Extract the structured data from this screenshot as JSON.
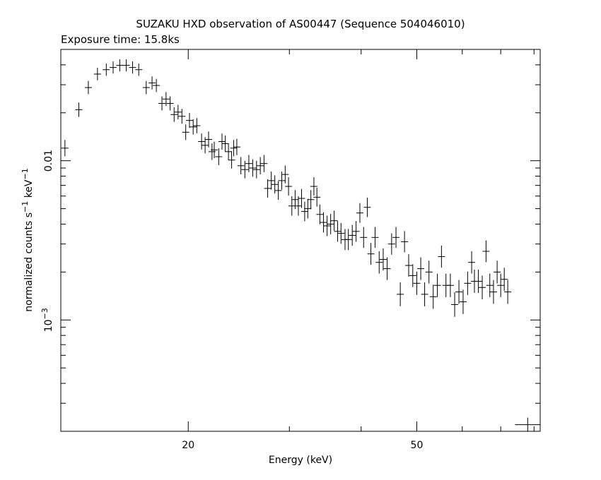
{
  "chart_data": {
    "type": "scatter",
    "title": "SUZAKU HXD observation of AS00447 (Sequence 504046010)",
    "subtitle": "Exposure time: 15.8ks",
    "xlabel": "Energy (keV)",
    "ylabel_parts": {
      "pre": "normalized counts s",
      "sup1": "−1",
      "mid": " keV",
      "sup2": "−1"
    },
    "x_scale": "log",
    "y_scale": "log",
    "xlim": [
      12.0,
      82.0
    ],
    "ylim": [
      0.0002,
      0.05
    ],
    "x_major_ticks": [
      20,
      50
    ],
    "x_tick_labels": [
      "20",
      "50"
    ],
    "y_major_ticks": [
      0.001,
      0.01
    ],
    "y_tick_labels": [
      {
        "base": "10",
        "sup": "−3"
      },
      {
        "base": "0.01",
        "sup": ""
      }
    ],
    "grid": false,
    "legend": "none",
    "colors": {
      "axes": "#000000",
      "points": "#000000",
      "background": "#ffffff"
    },
    "series": [
      {
        "points": [
          [
            12.2,
            0.012
          ],
          [
            12.9,
            0.0209
          ],
          [
            13.4,
            0.0288
          ],
          [
            13.9,
            0.035
          ],
          [
            14.4,
            0.0373
          ],
          [
            14.8,
            0.0385
          ],
          [
            15.2,
            0.0397
          ],
          [
            15.6,
            0.0397
          ],
          [
            16.0,
            0.0385
          ],
          [
            16.4,
            0.0373
          ],
          [
            16.9,
            0.0288
          ],
          [
            17.3,
            0.0308
          ],
          [
            17.6,
            0.0297
          ],
          [
            18.0,
            0.0229
          ],
          [
            18.3,
            0.0244
          ],
          [
            18.6,
            0.0229
          ],
          [
            18.9,
            0.0195
          ],
          [
            19.2,
            0.0202
          ],
          [
            19.5,
            0.019
          ],
          [
            19.8,
            0.0151
          ],
          [
            20.1,
            0.0179
          ],
          [
            20.4,
            0.0163
          ],
          [
            20.7,
            0.0166
          ],
          [
            21.1,
            0.0132
          ],
          [
            21.4,
            0.0125
          ],
          [
            21.7,
            0.0136
          ],
          [
            22.0,
            0.0114
          ],
          [
            22.2,
            0.0117
          ],
          [
            22.6,
            0.0106
          ],
          [
            22.9,
            0.0132
          ],
          [
            23.2,
            0.0128
          ],
          [
            23.5,
            0.0114
          ],
          [
            23.8,
            0.0101
          ],
          [
            24.0,
            0.012
          ],
          [
            24.3,
            0.0122
          ],
          [
            24.7,
            0.0093
          ],
          [
            25.1,
            0.0088
          ],
          [
            25.5,
            0.0096
          ],
          [
            25.9,
            0.009
          ],
          [
            26.3,
            0.0088
          ],
          [
            26.7,
            0.0093
          ],
          [
            27.1,
            0.0096
          ],
          [
            27.5,
            0.0067
          ],
          [
            27.9,
            0.0075
          ],
          [
            28.3,
            0.0071
          ],
          [
            28.7,
            0.0065
          ],
          [
            29.1,
            0.0075
          ],
          [
            29.5,
            0.0082
          ],
          [
            29.9,
            0.0069
          ],
          [
            30.3,
            0.0052
          ],
          [
            30.7,
            0.0057
          ],
          [
            31.1,
            0.0052
          ],
          [
            31.5,
            0.0058
          ],
          [
            31.9,
            0.0048
          ],
          [
            32.3,
            0.005
          ],
          [
            32.7,
            0.0057
          ],
          [
            33.1,
            0.0069
          ],
          [
            33.5,
            0.0059
          ],
          [
            33.9,
            0.0046
          ],
          [
            34.4,
            0.0041
          ],
          [
            34.9,
            0.0039
          ],
          [
            35.4,
            0.004
          ],
          [
            35.9,
            0.0042
          ],
          [
            36.4,
            0.0036
          ],
          [
            36.9,
            0.0035
          ],
          [
            37.5,
            0.0032
          ],
          [
            38.0,
            0.0032
          ],
          [
            38.6,
            0.0034
          ],
          [
            39.2,
            0.0036
          ],
          [
            39.8,
            0.0047
          ],
          [
            40.4,
            0.0033
          ],
          [
            41.0,
            0.0051
          ],
          [
            41.6,
            0.0026
          ],
          [
            42.3,
            0.0033
          ],
          [
            43.0,
            0.0023
          ],
          [
            43.7,
            0.0024
          ],
          [
            44.4,
            0.0021
          ],
          [
            45.2,
            0.003
          ],
          [
            46.0,
            0.0033
          ],
          [
            46.8,
            0.00145
          ],
          [
            47.6,
            0.0031
          ],
          [
            48.4,
            0.0022
          ],
          [
            49.2,
            0.0019
          ],
          [
            50.0,
            0.0017
          ],
          [
            50.8,
            0.0021
          ],
          [
            51.6,
            0.00145
          ],
          [
            52.5,
            0.002
          ],
          [
            53.4,
            0.0014
          ],
          [
            54.3,
            0.00165
          ],
          [
            55.2,
            0.0025
          ],
          [
            56.2,
            0.00165
          ],
          [
            57.2,
            0.00165
          ],
          [
            58.2,
            0.00125
          ],
          [
            59.2,
            0.0015
          ],
          [
            60.2,
            0.0013
          ],
          [
            61.3,
            0.0017
          ],
          [
            62.3,
            0.0023
          ],
          [
            63.0,
            0.00175
          ],
          [
            64.0,
            0.00175
          ],
          [
            65.0,
            0.0016
          ],
          [
            66.0,
            0.0027
          ],
          [
            67.0,
            0.00165
          ],
          [
            68.0,
            0.0015
          ],
          [
            69.0,
            0.002
          ],
          [
            70.0,
            0.00165
          ],
          [
            71.0,
            0.0018
          ],
          [
            72.0,
            0.0015
          ]
        ]
      },
      {
        "points": [
          [
            78.0,
            0.00022
          ]
        ]
      }
    ]
  }
}
